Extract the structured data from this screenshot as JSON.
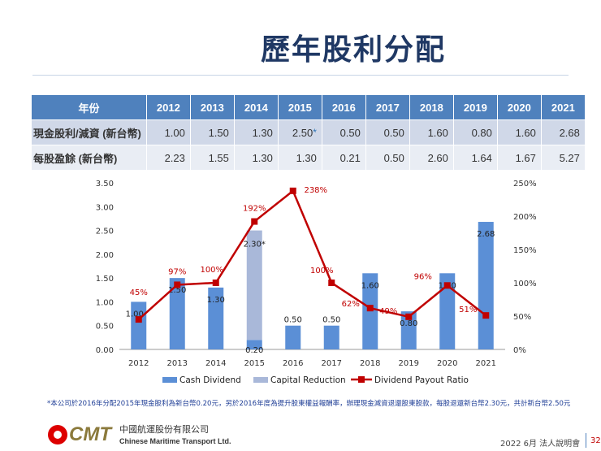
{
  "header": {
    "title": "歷年股利分配"
  },
  "table": {
    "header_label": "年份",
    "years": [
      "2012",
      "2013",
      "2014",
      "2015",
      "2016",
      "2017",
      "2018",
      "2019",
      "2020",
      "2021"
    ],
    "rows": [
      {
        "label": "現金股利/減資 (新台幣)",
        "values": [
          "1.00",
          "1.50",
          "1.30",
          "2.50",
          "0.50",
          "0.50",
          "1.60",
          "0.80",
          "1.60",
          "2.68"
        ],
        "star": "*"
      },
      {
        "label": "每股盈餘 (新台幣)",
        "values": [
          "2.23",
          "1.55",
          "1.30",
          "1.30",
          "0.21",
          "0.50",
          "2.60",
          "1.64",
          "1.67",
          "5.27"
        ]
      }
    ]
  },
  "chart_data": {
    "type": "bar+line",
    "categories": [
      "2012",
      "2013",
      "2014",
      "2015",
      "2016",
      "2017",
      "2018",
      "2019",
      "2020",
      "2021"
    ],
    "series": [
      {
        "name": "Cash Dividend",
        "type": "bar",
        "axis": "left",
        "color": "#5b8fd6",
        "values": [
          1.0,
          1.5,
          1.3,
          0.2,
          0.5,
          0.5,
          1.6,
          0.8,
          1.6,
          2.68
        ],
        "labels": [
          "1.00",
          "1.50",
          "1.30",
          "0.20",
          "0.50",
          "0.50",
          "1.60",
          "0.80",
          "1.60",
          "2.68"
        ]
      },
      {
        "name": "Capital Reduction",
        "type": "bar-stacked",
        "axis": "left",
        "color": "#a9b8d9",
        "values": [
          0,
          0,
          0,
          2.3,
          0,
          0,
          0,
          0,
          0,
          0
        ],
        "labels": [
          "",
          "",
          "",
          "2.30*",
          "",
          "",
          "",
          "",
          "",
          ""
        ]
      },
      {
        "name": "Dividend Payout Ratio",
        "type": "line",
        "axis": "right",
        "color": "#c00000",
        "values": [
          45,
          97,
          100,
          192,
          238,
          100,
          62,
          49,
          96,
          51
        ],
        "labels": [
          "45%",
          "97%",
          "100%",
          "192%",
          "238%",
          "100%",
          "62%",
          "49%",
          "96%",
          "51%"
        ]
      }
    ],
    "y_left": {
      "range": [
        0,
        3.5
      ],
      "ticks": [
        "0.00",
        "0.50",
        "1.00",
        "1.50",
        "2.00",
        "2.50",
        "3.00",
        "3.50"
      ]
    },
    "y_right": {
      "range": [
        0,
        250
      ],
      "ticks": [
        "0%",
        "50%",
        "100%",
        "150%",
        "200%",
        "250%"
      ]
    },
    "legend": "bottom",
    "grid": false
  },
  "footnote": {
    "star": "*",
    "text": "本公司於2016年分配2015年現金股利為新台幣0.20元，另於2016年度為提升股東權益報酬率，辦理現金減資退還股東股款，每股退還新台幣2.30元，共計新台幣2.50元"
  },
  "footer": {
    "logo_text": "CMT",
    "company_cn": "中國航運股份有限公司",
    "company_en": "Chinese Maritime Transport Ltd.",
    "meeting": "2022  6月 法人說明會",
    "page": "32"
  }
}
